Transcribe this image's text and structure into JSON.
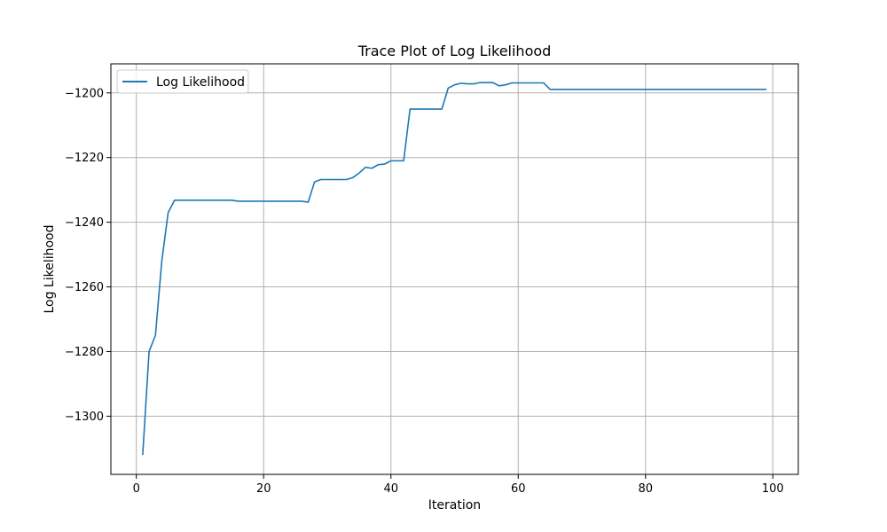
{
  "chart_data": {
    "type": "line",
    "title": "Trace Plot of Log Likelihood",
    "xlabel": "Iteration",
    "ylabel": "Log Likelihood",
    "xlim": [
      -4,
      104
    ],
    "ylim": [
      -1318,
      -1191
    ],
    "xticks": [
      0,
      20,
      40,
      60,
      80,
      100
    ],
    "yticks": [
      -1300,
      -1280,
      -1260,
      -1240,
      -1220,
      -1200
    ],
    "xtick_labels": [
      "0",
      "20",
      "40",
      "60",
      "80",
      "100"
    ],
    "ytick_labels": [
      "−1300",
      "−1280",
      "−1260",
      "−1240",
      "−1220",
      "−1200"
    ],
    "grid": true,
    "legend_position": "top-left",
    "series": [
      {
        "name": "Log Likelihood",
        "color": "#1f77b4",
        "x": [
          1,
          2,
          3,
          4,
          5,
          6,
          7,
          8,
          9,
          10,
          11,
          12,
          13,
          14,
          15,
          16,
          17,
          18,
          19,
          20,
          21,
          22,
          23,
          24,
          25,
          26,
          27,
          28,
          29,
          30,
          31,
          32,
          33,
          34,
          35,
          36,
          37,
          38,
          39,
          40,
          41,
          42,
          43,
          44,
          45,
          46,
          47,
          48,
          49,
          50,
          51,
          52,
          53,
          54,
          55,
          56,
          57,
          58,
          59,
          60,
          61,
          62,
          63,
          64,
          65,
          66,
          67,
          68,
          69,
          70,
          71,
          72,
          73,
          74,
          75,
          76,
          77,
          78,
          79,
          80,
          81,
          82,
          83,
          84,
          85,
          86,
          87,
          88,
          89,
          90,
          91,
          92,
          93,
          94,
          95,
          96,
          97,
          98,
          99
        ],
        "y": [
          -1312,
          -1280,
          -1275,
          -1252,
          -1237,
          -1233.2,
          -1233.2,
          -1233.2,
          -1233.2,
          -1233.2,
          -1233.2,
          -1233.2,
          -1233.2,
          -1233.2,
          -1233.2,
          -1233.5,
          -1233.5,
          -1233.5,
          -1233.5,
          -1233.5,
          -1233.5,
          -1233.5,
          -1233.5,
          -1233.5,
          -1233.5,
          -1233.5,
          -1233.8,
          -1227.5,
          -1226.8,
          -1226.8,
          -1226.8,
          -1226.8,
          -1226.8,
          -1226.2,
          -1224.8,
          -1223,
          -1223.3,
          -1222.2,
          -1222,
          -1221,
          -1221,
          -1221,
          -1205,
          -1205,
          -1205,
          -1205,
          -1205,
          -1205,
          -1198.5,
          -1197.5,
          -1197,
          -1197.2,
          -1197.2,
          -1196.8,
          -1196.8,
          -1196.8,
          -1197.8,
          -1197.5,
          -1196.9,
          -1196.9,
          -1196.9,
          -1196.9,
          -1196.9,
          -1196.9,
          -1198.9,
          -1198.9,
          -1198.9,
          -1198.9,
          -1198.9,
          -1198.9,
          -1198.9,
          -1198.9,
          -1198.9,
          -1198.9,
          -1198.9,
          -1198.9,
          -1198.9,
          -1198.9,
          -1198.9,
          -1198.9,
          -1198.9,
          -1198.9,
          -1198.9,
          -1198.9,
          -1198.9,
          -1198.9,
          -1198.9,
          -1198.9,
          -1198.9,
          -1198.9,
          -1198.9,
          -1198.9,
          -1198.9,
          -1198.9,
          -1198.9,
          -1198.9,
          -1198.9,
          -1198.9,
          -1198.9
        ]
      }
    ]
  }
}
